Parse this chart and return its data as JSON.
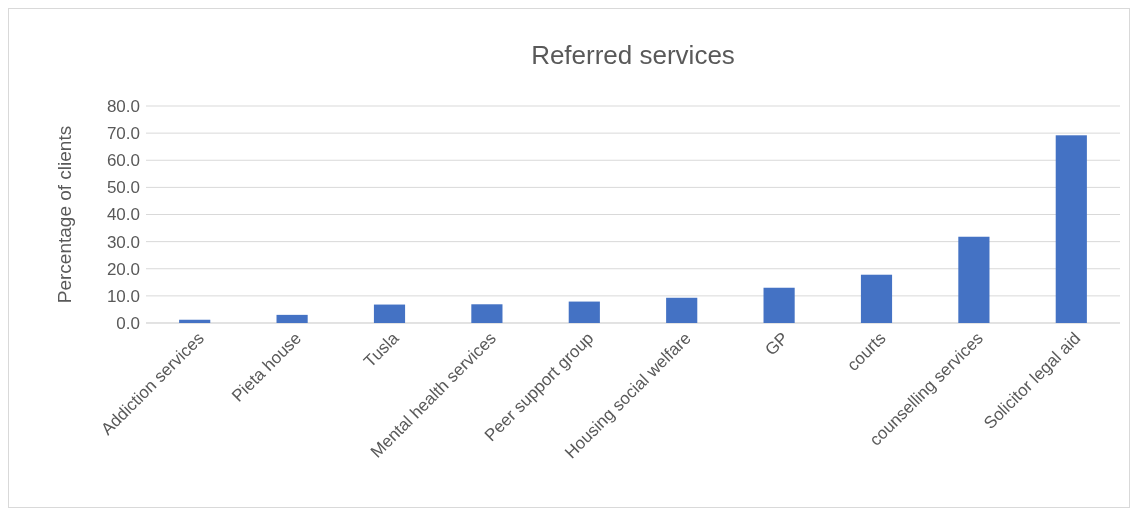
{
  "chart_data": {
    "type": "bar",
    "title": "Referred services",
    "ylabel": "Percentage of clients",
    "categories": [
      "Addiction services",
      "Pieta house",
      "Tusla",
      "Mental health services",
      "Peer support group",
      "Housing social welfare",
      "GP",
      "courts",
      "counselling services",
      "Solicitor legal aid"
    ],
    "values": [
      1.2,
      3.0,
      6.8,
      6.9,
      7.9,
      9.3,
      13.0,
      17.8,
      31.8,
      69.2
    ],
    "color": "#4472c4",
    "ylim": [
      0,
      80
    ],
    "yticks": [
      {
        "value": 0,
        "label": "0.0"
      },
      {
        "value": 10,
        "label": "10.0"
      },
      {
        "value": 20,
        "label": "20.0"
      },
      {
        "value": 30,
        "label": "30.0"
      },
      {
        "value": 40,
        "label": "40.0"
      },
      {
        "value": 50,
        "label": "50.0"
      },
      {
        "value": 60,
        "label": "60.0"
      },
      {
        "value": 70,
        "label": "70.0"
      },
      {
        "value": 80,
        "label": "80.0"
      }
    ],
    "grid": "y"
  }
}
